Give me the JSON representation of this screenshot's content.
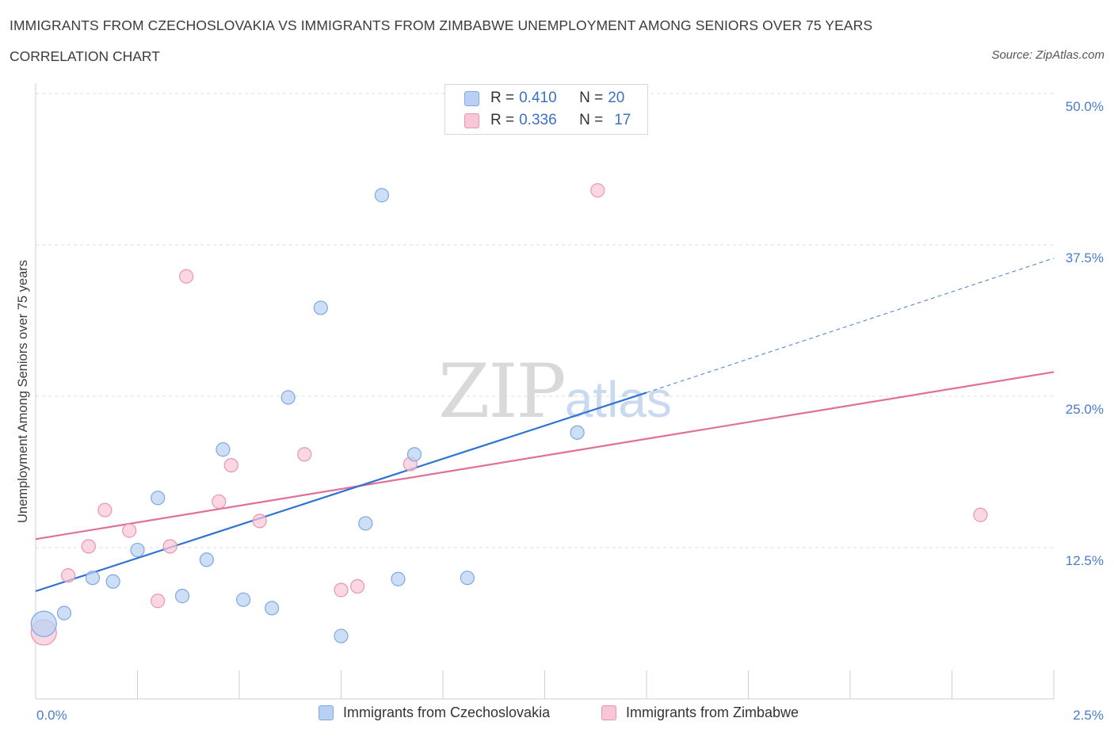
{
  "header": {
    "title": "IMMIGRANTS FROM CZECHOSLOVAKIA VS IMMIGRANTS FROM ZIMBABWE UNEMPLOYMENT AMONG SENIORS OVER 75 YEARS",
    "subtitle": "CORRELATION CHART",
    "source": "Source: ZipAtlas.com"
  },
  "watermark": {
    "zip": "ZIP",
    "atlas": "atlas"
  },
  "legend": {
    "rows": [
      {
        "r_label": "R = ",
        "r_value": "0.410",
        "n_label": "N = ",
        "n_value": "20",
        "color": "#b8d1f3",
        "border": "#7fa8e0"
      },
      {
        "r_label": "R = ",
        "r_value": "0.336",
        "n_label": "N = ",
        "n_value": "17",
        "color": "#f8c6d6",
        "border": "#e995b1"
      }
    ]
  },
  "bottom_legend": [
    {
      "label": "Immigrants from Czechoslovakia",
      "color": "#b8d1f3",
      "border": "#7fa8e0"
    },
    {
      "label": "Immigrants from Zimbabwe",
      "color": "#f8c6d6",
      "border": "#e995b1"
    }
  ],
  "chart_data": {
    "type": "scatter",
    "title": "IMMIGRANTS FROM CZECHOSLOVAKIA VS IMMIGRANTS FROM ZIMBABWE UNEMPLOYMENT AMONG SENIORS OVER 75 YEARS",
    "subtitle": "CORRELATION CHART",
    "xlabel": "",
    "ylabel": "Unemployment Among Seniors over 75 years",
    "xlim": [
      0,
      2.5
    ],
    "ylim": [
      0,
      50
    ],
    "x_tick_labels": [
      "0.0%",
      "2.5%"
    ],
    "y_tick_labels": [
      "12.5%",
      "25.0%",
      "37.5%",
      "50.0%"
    ],
    "y_ticks": [
      12.5,
      25.0,
      37.5,
      50.0
    ],
    "grid": "horizontal-dashed",
    "legend_placement": "top-center",
    "series": [
      {
        "name": "Immigrants from Czechoslovakia",
        "color": "#7fa8e0",
        "fill": "#b8d1f3",
        "R": 0.41,
        "N": 20,
        "points": [
          {
            "x": 0.02,
            "y": 6.2,
            "big": true
          },
          {
            "x": 0.07,
            "y": 7.1
          },
          {
            "x": 0.14,
            "y": 10.0
          },
          {
            "x": 0.19,
            "y": 9.7
          },
          {
            "x": 0.25,
            "y": 12.3
          },
          {
            "x": 0.3,
            "y": 16.6
          },
          {
            "x": 0.36,
            "y": 8.5
          },
          {
            "x": 0.42,
            "y": 11.5
          },
          {
            "x": 0.46,
            "y": 20.6
          },
          {
            "x": 0.51,
            "y": 8.2
          },
          {
            "x": 0.58,
            "y": 7.5
          },
          {
            "x": 0.62,
            "y": 24.9
          },
          {
            "x": 0.7,
            "y": 32.3
          },
          {
            "x": 0.75,
            "y": 5.2
          },
          {
            "x": 0.81,
            "y": 14.5
          },
          {
            "x": 0.85,
            "y": 41.6
          },
          {
            "x": 0.89,
            "y": 9.9
          },
          {
            "x": 0.93,
            "y": 20.2
          },
          {
            "x": 1.06,
            "y": 10.0
          },
          {
            "x": 1.33,
            "y": 22.0
          }
        ],
        "trend": {
          "x0": 0.0,
          "y0": 8.9,
          "x1": 1.5,
          "y1": 25.3,
          "dash_to_x": 2.5,
          "dash_to_y": 36.4
        }
      },
      {
        "name": "Immigrants from Zimbabwe",
        "color": "#e995b1",
        "fill": "#f8c6d6",
        "R": 0.336,
        "N": 17,
        "points": [
          {
            "x": 0.02,
            "y": 5.5,
            "big": true
          },
          {
            "x": 0.08,
            "y": 10.2
          },
          {
            "x": 0.13,
            "y": 12.6
          },
          {
            "x": 0.17,
            "y": 15.6
          },
          {
            "x": 0.23,
            "y": 13.9
          },
          {
            "x": 0.3,
            "y": 8.1
          },
          {
            "x": 0.33,
            "y": 12.6
          },
          {
            "x": 0.37,
            "y": 34.9
          },
          {
            "x": 0.45,
            "y": 16.3
          },
          {
            "x": 0.48,
            "y": 19.3
          },
          {
            "x": 0.55,
            "y": 14.7
          },
          {
            "x": 0.66,
            "y": 20.2
          },
          {
            "x": 0.75,
            "y": 9.0
          },
          {
            "x": 0.79,
            "y": 9.3
          },
          {
            "x": 0.92,
            "y": 19.4
          },
          {
            "x": 1.38,
            "y": 42.0
          },
          {
            "x": 2.32,
            "y": 15.2
          }
        ],
        "trend": {
          "x0": 0.0,
          "y0": 13.2,
          "x1": 2.5,
          "y1": 27.0
        }
      }
    ]
  }
}
